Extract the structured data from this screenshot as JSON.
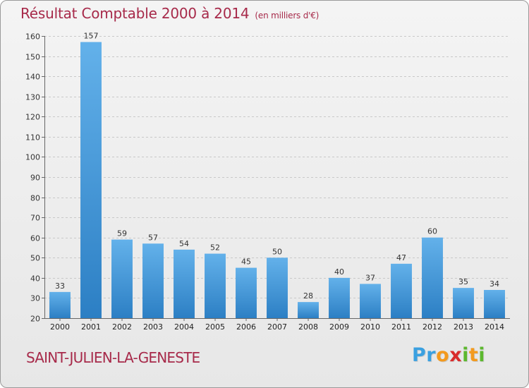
{
  "chart_data": {
    "type": "bar",
    "title": "Résultat Comptable 2000 à 2014",
    "unit_note": "(en milliers d'€)",
    "categories": [
      "2000",
      "2001",
      "2002",
      "2003",
      "2004",
      "2005",
      "2006",
      "2007",
      "2008",
      "2009",
      "2010",
      "2011",
      "2012",
      "2013",
      "2014"
    ],
    "values": [
      33,
      157,
      59,
      57,
      54,
      52,
      45,
      50,
      28,
      40,
      37,
      47,
      60,
      35,
      34
    ],
    "ylim": [
      20,
      160
    ],
    "yticks": [
      20,
      30,
      40,
      50,
      60,
      70,
      80,
      90,
      100,
      110,
      120,
      130,
      140,
      150,
      160
    ],
    "grid": true,
    "xlabel": "",
    "ylabel": ""
  },
  "commune": "SAINT-JULIEN-LA-GENESTE",
  "logo": {
    "letters": [
      "P",
      "r",
      "o",
      "x",
      "i",
      "t",
      "i"
    ],
    "colors": [
      "#3aa0e0",
      "#3aa0e0",
      "#f39a1e",
      "#d92b2b",
      "#5cb82e",
      "#f39a1e",
      "#5cb82e"
    ]
  },
  "colors": {
    "bar_light": "#63b1ea",
    "bar_dark": "#2c7fc4",
    "title": "#a72a4a"
  }
}
